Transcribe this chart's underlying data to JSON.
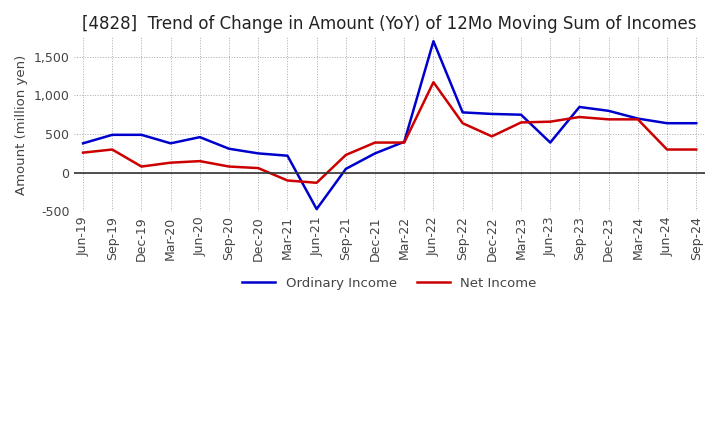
{
  "title": "[4828]  Trend of Change in Amount (YoY) of 12Mo Moving Sum of Incomes",
  "ylabel": "Amount (million yen)",
  "ylim": [
    -500,
    1750
  ],
  "yticks": [
    -500,
    0,
    500,
    1000,
    1500
  ],
  "x_labels": [
    "Jun-19",
    "Sep-19",
    "Dec-19",
    "Mar-20",
    "Jun-20",
    "Sep-20",
    "Dec-20",
    "Mar-21",
    "Jun-21",
    "Sep-21",
    "Dec-21",
    "Mar-22",
    "Jun-22",
    "Sep-22",
    "Dec-22",
    "Mar-23",
    "Jun-23",
    "Sep-23",
    "Dec-23",
    "Mar-24",
    "Jun-24",
    "Sep-24"
  ],
  "ordinary_income": [
    380,
    490,
    490,
    380,
    460,
    310,
    250,
    220,
    -470,
    50,
    250,
    400,
    1700,
    780,
    760,
    750,
    390,
    850,
    800,
    700,
    640,
    640
  ],
  "net_income": [
    260,
    300,
    80,
    130,
    150,
    80,
    60,
    -100,
    -130,
    230,
    390,
    390,
    1170,
    640,
    470,
    650,
    660,
    720,
    690,
    690,
    300,
    300
  ],
  "ordinary_color": "#0000cc",
  "net_color": "#cc0000",
  "background_color": "#ffffff",
  "grid_color": "#aaaaaa",
  "title_fontsize": 12,
  "label_fontsize": 9.5,
  "tick_fontsize": 9
}
